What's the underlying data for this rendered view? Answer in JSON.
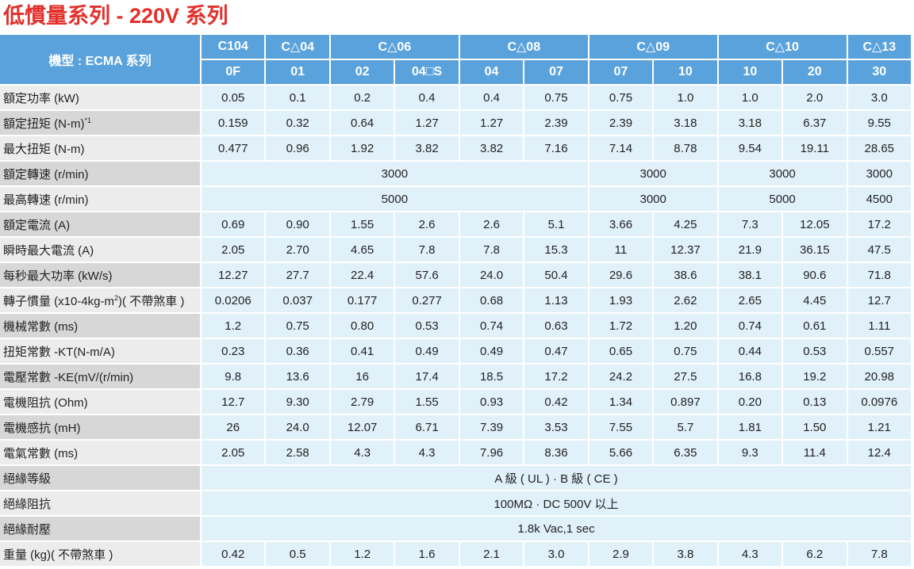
{
  "header": {
    "title": "低慣量系列 - 220V 系列"
  },
  "table": {
    "corner": "機型 : ECMA 系列",
    "groups": [
      {
        "name": "C104",
        "subs": [
          "0F"
        ]
      },
      {
        "name": "C△04",
        "subs": [
          "01"
        ]
      },
      {
        "name": "C△06",
        "subs": [
          "02",
          "04□S"
        ]
      },
      {
        "name": "C△08",
        "subs": [
          "04",
          "07"
        ]
      },
      {
        "name": "C△09",
        "subs": [
          "07",
          "10"
        ]
      },
      {
        "name": "C△10",
        "subs": [
          "10",
          "20"
        ]
      },
      {
        "name": "C△13",
        "subs": [
          "30"
        ]
      }
    ],
    "rows": [
      {
        "label": "額定功率 (kW)",
        "cells": [
          "0.05",
          "0.1",
          "0.2",
          "0.4",
          "0.4",
          "0.75",
          "0.75",
          "1.0",
          "1.0",
          "2.0",
          "3.0"
        ]
      },
      {
        "label": "額定扭矩 (N-m)",
        "label_sup": "*1",
        "cells": [
          "0.159",
          "0.32",
          "0.64",
          "1.27",
          "1.27",
          "2.39",
          "2.39",
          "3.18",
          "3.18",
          "6.37",
          "9.55"
        ]
      },
      {
        "label": "最大扭矩 (N-m)",
        "cells": [
          "0.477",
          "0.96",
          "1.92",
          "3.82",
          "3.82",
          "7.16",
          "7.14",
          "8.78",
          "9.54",
          "19.11",
          "28.65"
        ]
      },
      {
        "label": "額定轉速 (r/min)",
        "cells": [
          "3000",
          "3000",
          "3000",
          "3000"
        ]
      },
      {
        "label": "最高轉速 (r/min)",
        "cells": [
          "5000",
          "3000",
          "5000",
          "4500"
        ]
      },
      {
        "label": "額定電流 (A)",
        "cells": [
          "0.69",
          "0.90",
          "1.55",
          "2.6",
          "2.6",
          "5.1",
          "3.66",
          "4.25",
          "7.3",
          "12.05",
          "17.2"
        ]
      },
      {
        "label": "瞬時最大電流 (A)",
        "cells": [
          "2.05",
          "2.70",
          "4.65",
          "7.8",
          "7.8",
          "15.3",
          "11",
          "12.37",
          "21.9",
          "36.15",
          "47.5"
        ]
      },
      {
        "label": "每秒最大功率 (kW/s)",
        "cells": [
          "12.27",
          "27.7",
          "22.4",
          "57.6",
          "24.0",
          "50.4",
          "29.6",
          "38.6",
          "38.1",
          "90.6",
          "71.8"
        ]
      },
      {
        "label": "轉子慣量 (x10-4kg-m",
        "label_sup": "2",
        "label_after": ")( 不帶煞車 )",
        "cells": [
          "0.0206",
          "0.037",
          "0.177",
          "0.277",
          "0.68",
          "1.13",
          "1.93",
          "2.62",
          "2.65",
          "4.45",
          "12.7"
        ]
      },
      {
        "label": "機械常數 (ms)",
        "cells": [
          "1.2",
          "0.75",
          "0.80",
          "0.53",
          "0.74",
          "0.63",
          "1.72",
          "1.20",
          "0.74",
          "0.61",
          "1.11"
        ]
      },
      {
        "label": "扭矩常數 -KT(N-m/A)",
        "cells": [
          "0.23",
          "0.36",
          "0.41",
          "0.49",
          "0.49",
          "0.47",
          "0.65",
          "0.75",
          "0.44",
          "0.53",
          "0.557"
        ]
      },
      {
        "label": "電壓常數 -KE(mV/(r/min)",
        "cells": [
          "9.8",
          "13.6",
          "16",
          "17.4",
          "18.5",
          "17.2",
          "24.2",
          "27.5",
          "16.8",
          "19.2",
          "20.98"
        ]
      },
      {
        "label": "電機阻抗 (Ohm)",
        "cells": [
          "12.7",
          "9.30",
          "2.79",
          "1.55",
          "0.93",
          "0.42",
          "1.34",
          "0.897",
          "0.20",
          "0.13",
          "0.0976"
        ]
      },
      {
        "label": "電機感抗 (mH)",
        "cells": [
          "26",
          "24.0",
          "12.07",
          "6.71",
          "7.39",
          "3.53",
          "7.55",
          "5.7",
          "1.81",
          "1.50",
          "1.21"
        ]
      },
      {
        "label": "電氣常數 (ms)",
        "cells": [
          "2.05",
          "2.58",
          "4.3",
          "4.3",
          "7.96",
          "8.36",
          "5.66",
          "6.35",
          "9.3",
          "11.4",
          "12.4"
        ]
      },
      {
        "label": "絕緣等級",
        "cells": [
          "A 級 ( UL ) · B 級 ( CE )"
        ]
      },
      {
        "label": "絕緣阻抗",
        "cells": [
          "100MΩ · DC 500V 以上"
        ]
      },
      {
        "label": "絕緣耐壓",
        "cells": [
          "1.8k Vac,1 sec"
        ]
      },
      {
        "label": "重量 (kg)( 不帶煞車 )",
        "cells": [
          "0.42",
          "0.5",
          "1.2",
          "1.6",
          "2.1",
          "3.0",
          "2.9",
          "3.8",
          "4.3",
          "6.2",
          "7.8"
        ]
      }
    ]
  }
}
